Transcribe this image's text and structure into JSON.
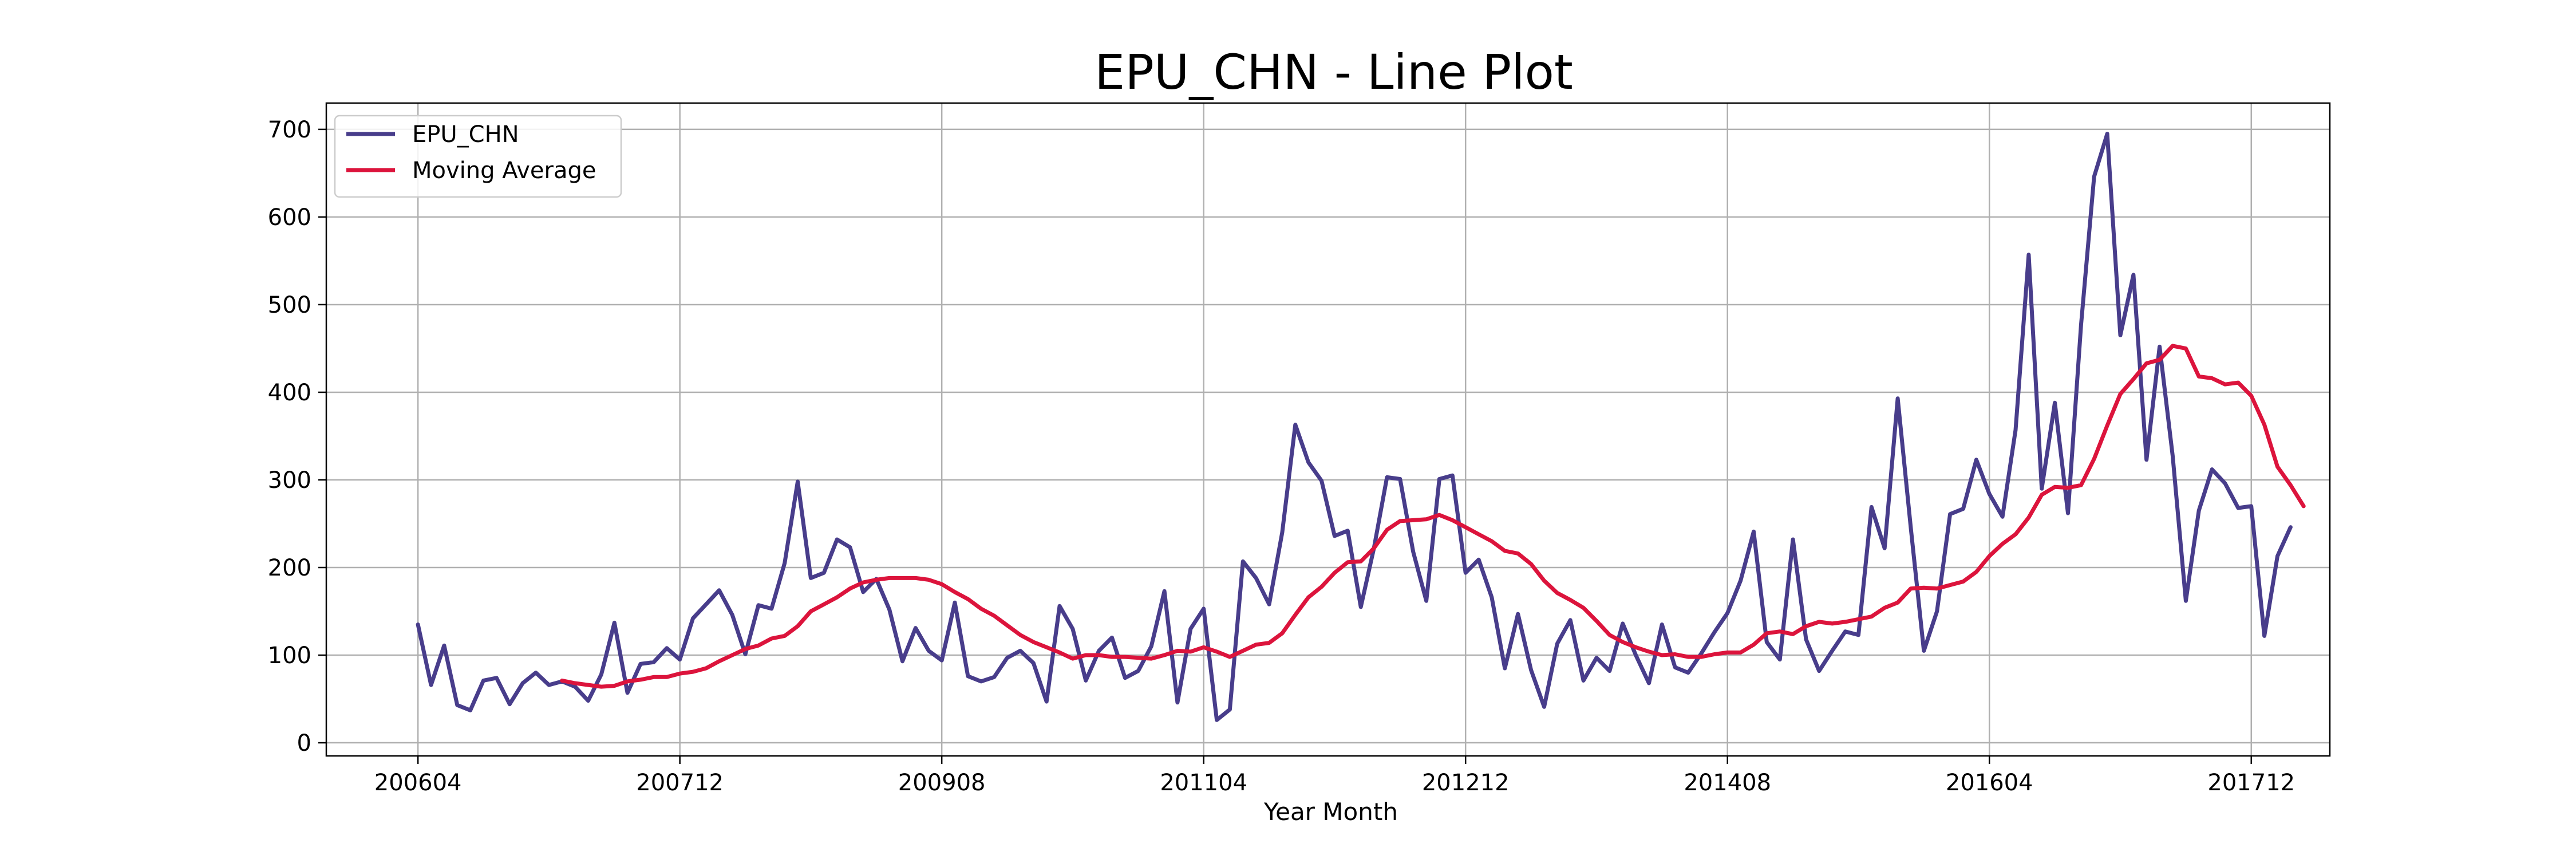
{
  "chart_data": {
    "type": "line",
    "title": "EPU_CHN - Line Plot",
    "xlabel": "Year Month",
    "ylabel": "",
    "ylim": [
      -15,
      730
    ],
    "y_ticks": [
      0,
      100,
      200,
      300,
      400,
      500,
      600,
      700
    ],
    "x_tick_labels": [
      "200604",
      "200712",
      "200908",
      "201104",
      "201212",
      "201408",
      "201604",
      "201712"
    ],
    "x_start": "200604",
    "grid": true,
    "legend_position": "top-left",
    "series": [
      {
        "name": "EPU_CHN",
        "color": "#483d8b",
        "values": [
          135,
          66,
          111,
          43,
          37,
          71,
          74,
          44,
          68,
          80,
          66,
          70,
          64,
          48,
          78,
          137,
          57,
          90,
          92,
          108,
          95,
          142,
          158,
          174,
          146,
          101,
          157,
          153,
          205,
          298,
          188,
          194,
          232,
          223,
          172,
          187,
          152,
          93,
          131,
          105,
          94,
          160,
          76,
          70,
          75,
          97,
          105,
          91,
          47,
          156,
          130,
          71,
          105,
          120,
          74,
          82,
          110,
          173,
          46,
          130,
          153,
          26,
          38,
          207,
          188,
          158,
          240,
          363,
          320,
          299,
          236,
          242,
          155,
          222,
          303,
          301,
          218,
          162,
          301,
          305,
          194,
          209,
          166,
          85,
          147,
          83,
          41,
          113,
          140,
          71,
          97,
          82,
          136,
          100,
          68,
          135,
          86,
          80,
          102,
          126,
          148,
          185,
          241,
          115,
          95,
          232,
          118,
          82,
          105,
          127,
          123,
          269,
          222,
          393,
          245,
          105,
          150,
          261,
          267,
          323,
          284,
          258,
          357,
          557,
          290,
          388,
          262,
          477,
          646,
          695,
          465,
          534,
          323,
          452,
          327,
          162,
          265,
          312,
          296,
          268,
          270,
          122,
          213,
          246
        ]
      },
      {
        "name": "Moving Average",
        "color": "#dc143c",
        "offset": 11,
        "values": [
          71,
          68,
          66,
          64,
          65,
          70,
          72,
          75,
          75,
          79,
          81,
          85,
          93,
          100,
          107,
          111,
          119,
          122,
          133,
          150,
          158,
          166,
          176,
          183,
          186,
          188,
          188,
          188,
          186,
          181,
          172,
          164,
          153,
          145,
          134,
          123,
          115,
          109,
          103,
          96,
          100,
          100,
          98,
          98,
          97,
          96,
          100,
          105,
          104,
          109,
          104,
          98,
          105,
          112,
          114,
          125,
          146,
          166,
          178,
          194,
          206,
          207,
          222,
          243,
          253,
          254,
          255,
          260,
          254,
          246,
          238,
          230,
          219,
          216,
          204,
          185,
          171,
          163,
          154,
          139,
          123,
          115,
          109,
          104,
          100,
          101,
          98,
          98,
          101,
          103,
          103,
          112,
          125,
          127,
          124,
          133,
          138,
          136,
          138,
          141,
          144,
          154,
          160,
          176,
          177,
          176,
          180,
          184,
          195,
          213,
          227,
          238,
          257,
          283,
          292,
          291,
          294,
          324,
          362,
          398,
          415,
          433,
          437,
          453,
          450,
          418,
          416,
          409,
          411,
          396,
          363,
          315,
          294,
          270
        ]
      }
    ]
  }
}
